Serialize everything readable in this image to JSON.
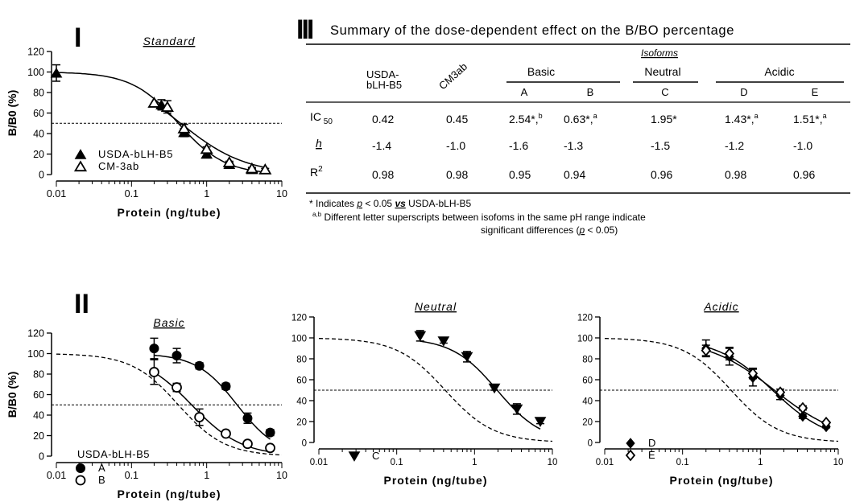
{
  "panel_labels": {
    "p1": "I",
    "p2": "II",
    "p3": "III"
  },
  "chart_data": [
    {
      "type": "scatter",
      "title": "Standard",
      "xlabel": "Protein (ng/tube)",
      "ylabel": "B/B0 (%)",
      "xscale": "log",
      "xlim": [
        0.01,
        10
      ],
      "ylim": [
        0,
        120
      ],
      "xticks": [
        "0.01",
        "0.1",
        "1",
        "10"
      ],
      "yticks": [
        "0",
        "20",
        "40",
        "60",
        "80",
        "100",
        "120"
      ],
      "reference_line_y": 50,
      "legend_placement": "bottom-left",
      "series": [
        {
          "name": "USDA-bLH-B5",
          "marker": "filled-triangle",
          "x": [
            0.01,
            0.25,
            0.5,
            1.0,
            2.0,
            4.0
          ],
          "y": [
            99,
            68,
            41,
            20,
            10,
            5
          ],
          "err": [
            8,
            5,
            4,
            3,
            2,
            1
          ]
        },
        {
          "name": "CM-3ab",
          "marker": "open-triangle",
          "x": [
            0.2,
            0.3,
            0.5,
            1.0,
            2.0,
            4.0,
            6.0
          ],
          "y": [
            70,
            66,
            45,
            25,
            12,
            6,
            5
          ],
          "err": [
            0,
            6,
            4,
            2,
            1,
            1,
            1
          ]
        }
      ]
    },
    {
      "type": "scatter",
      "title": "Basic",
      "xlabel": "Protein (ng/tube)",
      "ylabel": "B/B0 (%)",
      "xscale": "log",
      "xlim": [
        0.01,
        10
      ],
      "ylim": [
        0,
        120
      ],
      "xticks": [
        "0.01",
        "0.1",
        "1",
        "10"
      ],
      "yticks": [
        "0",
        "20",
        "40",
        "60",
        "80",
        "100",
        "120"
      ],
      "reference_line_y": 50,
      "reference_curve": "USDA-bLH-B5",
      "series": [
        {
          "name": "A",
          "marker": "filled-circle",
          "x": [
            0.2,
            0.4,
            0.8,
            1.8,
            3.5,
            7.0
          ],
          "y": [
            105,
            98,
            88,
            68,
            37,
            23
          ],
          "err": [
            10,
            7,
            3,
            3,
            5,
            3
          ]
        },
        {
          "name": "B",
          "marker": "open-circle",
          "x": [
            0.2,
            0.4,
            0.8,
            1.8,
            3.5,
            7.0
          ],
          "y": [
            82,
            67,
            38,
            22,
            12,
            8
          ],
          "err": [
            12,
            4,
            8,
            2,
            2,
            2
          ]
        }
      ]
    },
    {
      "type": "scatter",
      "title": "Neutral",
      "xlabel": "Protein (ng/tube)",
      "xscale": "log",
      "xlim": [
        0.01,
        10
      ],
      "ylim": [
        0,
        120
      ],
      "xticks": [
        "0.01",
        "0.1",
        "1",
        "10"
      ],
      "yticks": [
        "0",
        "20",
        "40",
        "60",
        "80",
        "100",
        "120"
      ],
      "reference_line_y": 50,
      "series": [
        {
          "name": "C",
          "marker": "filled-inverted-triangle",
          "x": [
            0.2,
            0.4,
            0.8,
            1.8,
            3.5,
            7.0
          ],
          "y": [
            102,
            97,
            82,
            52,
            32,
            20
          ],
          "err": [
            5,
            2,
            5,
            2,
            5,
            2
          ]
        }
      ]
    },
    {
      "type": "scatter",
      "title": "Acidic",
      "xlabel": "Protein (ng/tube)",
      "xscale": "log",
      "xlim": [
        0.01,
        10
      ],
      "ylim": [
        0,
        120
      ],
      "xticks": [
        "0.01",
        "0.1",
        "1",
        "10"
      ],
      "yticks": [
        "0",
        "20",
        "40",
        "60",
        "80",
        "100",
        "120"
      ],
      "reference_line_y": 50,
      "series": [
        {
          "name": "D",
          "marker": "filled-diamond",
          "x": [
            0.2,
            0.4,
            0.8,
            1.8,
            3.5,
            7.0
          ],
          "y": [
            90,
            82,
            62,
            45,
            25,
            15
          ],
          "err": [
            8,
            8,
            8,
            4,
            2,
            1
          ]
        },
        {
          "name": "E",
          "marker": "open-diamond",
          "x": [
            0.2,
            0.4,
            0.8,
            1.8,
            3.5,
            7.0
          ],
          "y": [
            88,
            85,
            66,
            48,
            33,
            19
          ],
          "err": [
            5,
            6,
            5,
            3,
            2,
            1
          ]
        }
      ]
    },
    {
      "type": "table",
      "title": "Summary of the dose-dependent effect on the B/BO percentage",
      "group_header": "Isoforms",
      "sub_groups": [
        "Basic",
        "Neutral",
        "Acidic"
      ],
      "columns": [
        "USDA-bLH-B5",
        "CM3ab",
        "A",
        "B",
        "C",
        "D",
        "E"
      ],
      "rows": [
        {
          "label": "IC",
          "label_sub": "50",
          "cells": [
            "0.42",
            "0.45",
            "2.54*,",
            "0.63*,",
            "1.95*",
            "1.43*,",
            "1.51*,"
          ],
          "sups": [
            "",
            "",
            "b",
            "a",
            "",
            "a",
            "a"
          ]
        },
        {
          "label": "h",
          "label_sub": "",
          "cells": [
            "-1.4",
            "-1.0",
            "-1.6",
            "-1.3",
            "-1.5",
            "-1.2",
            "-1.0"
          ],
          "sups": [
            "",
            "",
            "",
            "",
            "",
            "",
            ""
          ]
        },
        {
          "label": "R",
          "label_sup": "2",
          "cells": [
            "0.98",
            "0.98",
            "0.95",
            "0.94",
            "0.96",
            "0.98",
            "0.96"
          ],
          "sups": [
            "",
            "",
            "",
            "",
            "",
            "",
            ""
          ]
        }
      ],
      "footnotes": {
        "note1_prefix": "* Indicates ",
        "note1_p": "p",
        "note1_mid": " < 0.05 ",
        "note1_vs": "vs",
        "note1_end": " USDA-bLH-B5",
        "note2_sup": "a,b",
        "note2_line1": " Different letter superscripts between isofoms in the same pH range indicate",
        "note2_line2a": "significant differences (",
        "note2_p": "p",
        "note2_line2b": " < 0.05)"
      }
    }
  ],
  "colors": {
    "ink": "#000000",
    "marker_fill_open": "#ffffff"
  }
}
